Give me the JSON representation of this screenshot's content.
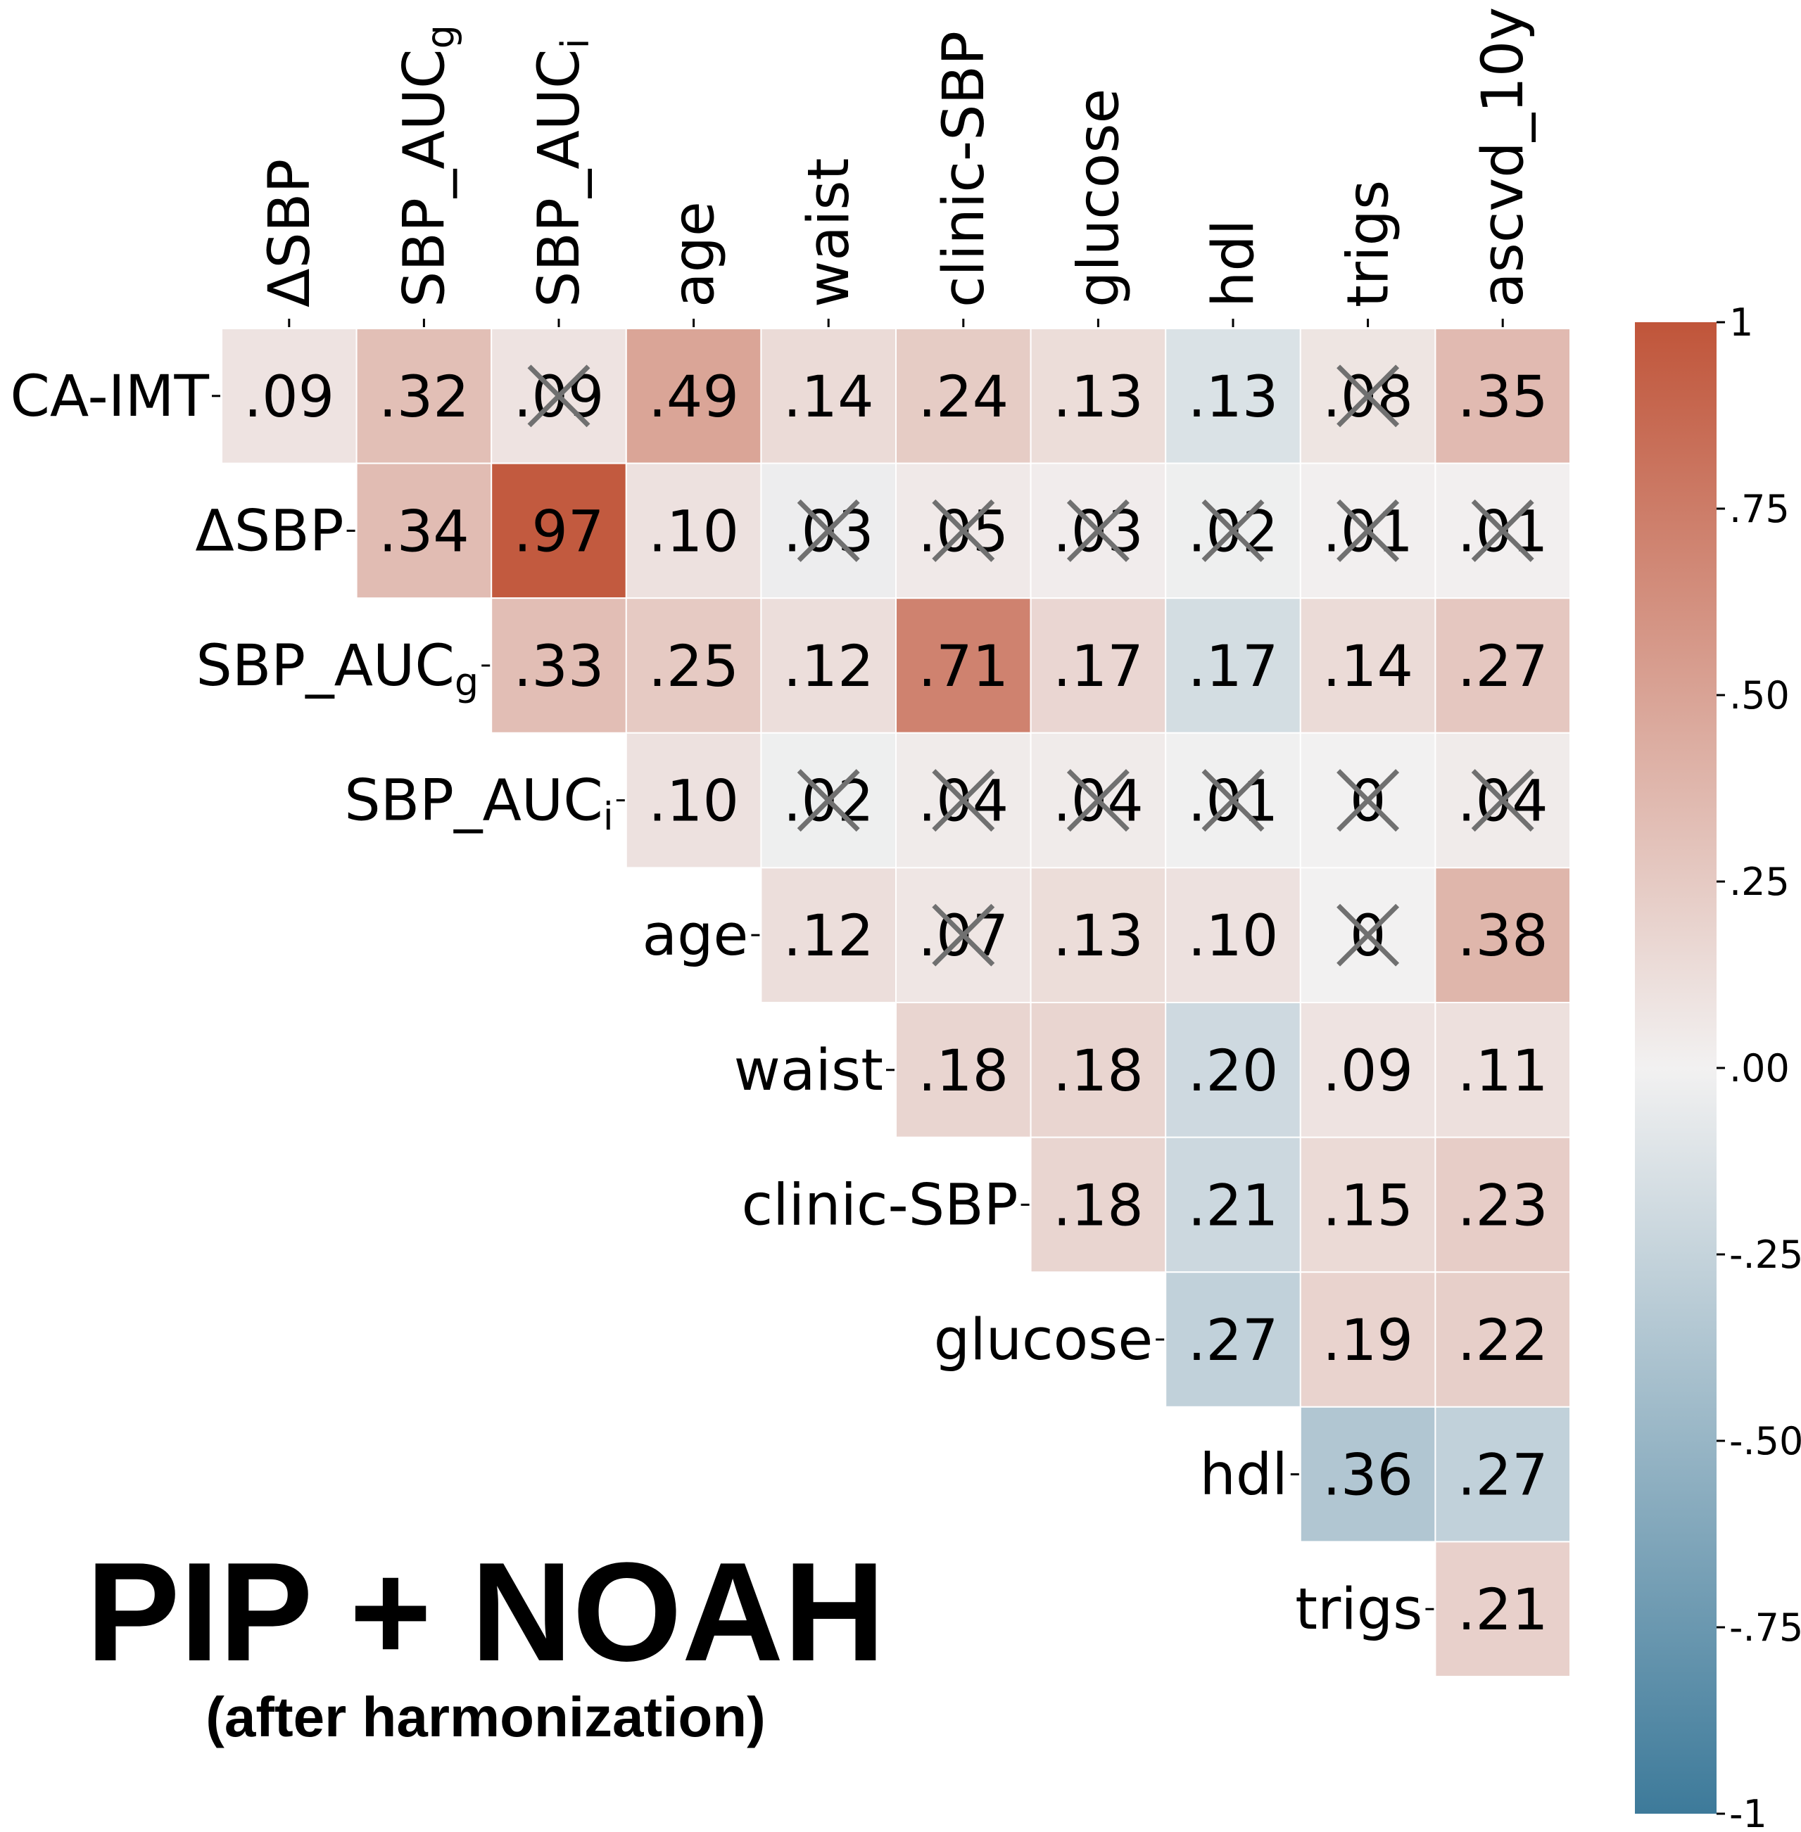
{
  "title": "PIP + NOAH",
  "subtitle": "(after harmonization)",
  "chart_data": {
    "type": "heatmap",
    "layout": "upper-triangle correlation matrix",
    "rows": [
      "CA-IMT",
      "ΔSBP",
      "SBP_AUCg",
      "SBP_AUCi",
      "age",
      "waist",
      "clinic-SBP",
      "glucose",
      "hdl",
      "trigs"
    ],
    "row_labels_rich": [
      {
        "base": "CA-IMT",
        "sub": ""
      },
      {
        "base": "ΔSBP",
        "sub": ""
      },
      {
        "base": "SBP_AUC",
        "sub": "g"
      },
      {
        "base": "SBP_AUC",
        "sub": "i"
      },
      {
        "base": "age",
        "sub": ""
      },
      {
        "base": "waist",
        "sub": ""
      },
      {
        "base": "clinic-SBP",
        "sub": ""
      },
      {
        "base": "glucose",
        "sub": ""
      },
      {
        "base": "hdl",
        "sub": ""
      },
      {
        "base": "trigs",
        "sub": ""
      }
    ],
    "columns": [
      "ΔSBP",
      "SBP_AUCg",
      "SBP_AUCi",
      "age",
      "waist",
      "clinic-SBP",
      "glucose",
      "hdl",
      "trigs",
      "ascvd_10y"
    ],
    "column_labels_rich": [
      {
        "base": "ΔSBP",
        "sub": ""
      },
      {
        "base": "SBP_AUC",
        "sub": "g"
      },
      {
        "base": "SBP_AUC",
        "sub": "i"
      },
      {
        "base": "age",
        "sub": ""
      },
      {
        "base": "waist",
        "sub": ""
      },
      {
        "base": "clinic-SBP",
        "sub": ""
      },
      {
        "base": "glucose",
        "sub": ""
      },
      {
        "base": "hdl",
        "sub": ""
      },
      {
        "base": "trigs",
        "sub": ""
      },
      {
        "base": "ascvd_10y",
        "sub": ""
      }
    ],
    "cells": [
      [
        {
          "v": 0.09,
          "t": ".09",
          "x": false
        },
        {
          "v": 0.32,
          "t": ".32",
          "x": false
        },
        {
          "v": 0.09,
          "t": ".09",
          "x": true
        },
        {
          "v": 0.49,
          "t": ".49",
          "x": false
        },
        {
          "v": 0.14,
          "t": ".14",
          "x": false
        },
        {
          "v": 0.24,
          "t": ".24",
          "x": false
        },
        {
          "v": 0.13,
          "t": ".13",
          "x": false
        },
        {
          "v": -0.13,
          "t": ".13",
          "x": false
        },
        {
          "v": 0.08,
          "t": ".08",
          "x": true
        },
        {
          "v": 0.35,
          "t": ".35",
          "x": false
        }
      ],
      [
        null,
        {
          "v": 0.34,
          "t": ".34",
          "x": false
        },
        {
          "v": 0.97,
          "t": ".97",
          "x": false
        },
        {
          "v": 0.1,
          "t": ".10",
          "x": false
        },
        {
          "v": -0.03,
          "t": ".03",
          "x": true
        },
        {
          "v": 0.05,
          "t": ".05",
          "x": true
        },
        {
          "v": 0.03,
          "t": ".03",
          "x": true
        },
        {
          "v": -0.02,
          "t": ".02",
          "x": true
        },
        {
          "v": 0.01,
          "t": ".01",
          "x": true
        },
        {
          "v": 0.01,
          "t": ".01",
          "x": true
        }
      ],
      [
        null,
        null,
        {
          "v": 0.33,
          "t": ".33",
          "x": false
        },
        {
          "v": 0.25,
          "t": ".25",
          "x": false
        },
        {
          "v": 0.12,
          "t": ".12",
          "x": false
        },
        {
          "v": 0.71,
          "t": ".71",
          "x": false
        },
        {
          "v": 0.17,
          "t": ".17",
          "x": false
        },
        {
          "v": -0.17,
          "t": ".17",
          "x": false
        },
        {
          "v": 0.14,
          "t": ".14",
          "x": false
        },
        {
          "v": 0.27,
          "t": ".27",
          "x": false
        }
      ],
      [
        null,
        null,
        null,
        {
          "v": 0.1,
          "t": ".10",
          "x": false
        },
        {
          "v": -0.02,
          "t": ".02",
          "x": true
        },
        {
          "v": 0.04,
          "t": ".04",
          "x": true
        },
        {
          "v": 0.04,
          "t": ".04",
          "x": true
        },
        {
          "v": -0.01,
          "t": ".01",
          "x": true
        },
        {
          "v": 0.0,
          "t": "0",
          "x": true
        },
        {
          "v": 0.04,
          "t": ".04",
          "x": true
        }
      ],
      [
        null,
        null,
        null,
        null,
        {
          "v": 0.12,
          "t": ".12",
          "x": false
        },
        {
          "v": 0.07,
          "t": ".07",
          "x": true
        },
        {
          "v": 0.13,
          "t": ".13",
          "x": false
        },
        {
          "v": 0.1,
          "t": ".10",
          "x": false
        },
        {
          "v": 0.0,
          "t": "0",
          "x": true
        },
        {
          "v": 0.38,
          "t": ".38",
          "x": false
        }
      ],
      [
        null,
        null,
        null,
        null,
        null,
        {
          "v": 0.18,
          "t": ".18",
          "x": false
        },
        {
          "v": 0.18,
          "t": ".18",
          "x": false
        },
        {
          "v": -0.2,
          "t": ".20",
          "x": false
        },
        {
          "v": 0.09,
          "t": ".09",
          "x": false
        },
        {
          "v": 0.11,
          "t": ".11",
          "x": false
        }
      ],
      [
        null,
        null,
        null,
        null,
        null,
        null,
        {
          "v": 0.18,
          "t": ".18",
          "x": false
        },
        {
          "v": -0.21,
          "t": ".21",
          "x": false
        },
        {
          "v": 0.15,
          "t": ".15",
          "x": false
        },
        {
          "v": 0.23,
          "t": ".23",
          "x": false
        }
      ],
      [
        null,
        null,
        null,
        null,
        null,
        null,
        null,
        {
          "v": -0.27,
          "t": ".27",
          "x": false
        },
        {
          "v": 0.19,
          "t": ".19",
          "x": false
        },
        {
          "v": 0.22,
          "t": ".22",
          "x": false
        }
      ],
      [
        null,
        null,
        null,
        null,
        null,
        null,
        null,
        null,
        {
          "v": -0.36,
          "t": ".36",
          "x": false
        },
        {
          "v": -0.27,
          "t": ".27",
          "x": false
        }
      ],
      [
        null,
        null,
        null,
        null,
        null,
        null,
        null,
        null,
        null,
        {
          "v": 0.21,
          "t": ".21",
          "x": false
        }
      ]
    ],
    "colorbar": {
      "range": [
        -1,
        1
      ],
      "ticks": [
        1,
        0.75,
        0.5,
        0.25,
        0,
        -0.25,
        -0.5,
        -0.75,
        -1
      ],
      "tick_labels": [
        "1",
        ".75",
        ".50",
        ".25",
        ".00",
        "-.25",
        "-.50",
        "-.75",
        "-1"
      ],
      "colors": {
        "negative": "#3d7a9a",
        "zero": "#f2f1f1",
        "positive": "#c0553a"
      }
    },
    "cross_mark_color": "#707070"
  }
}
